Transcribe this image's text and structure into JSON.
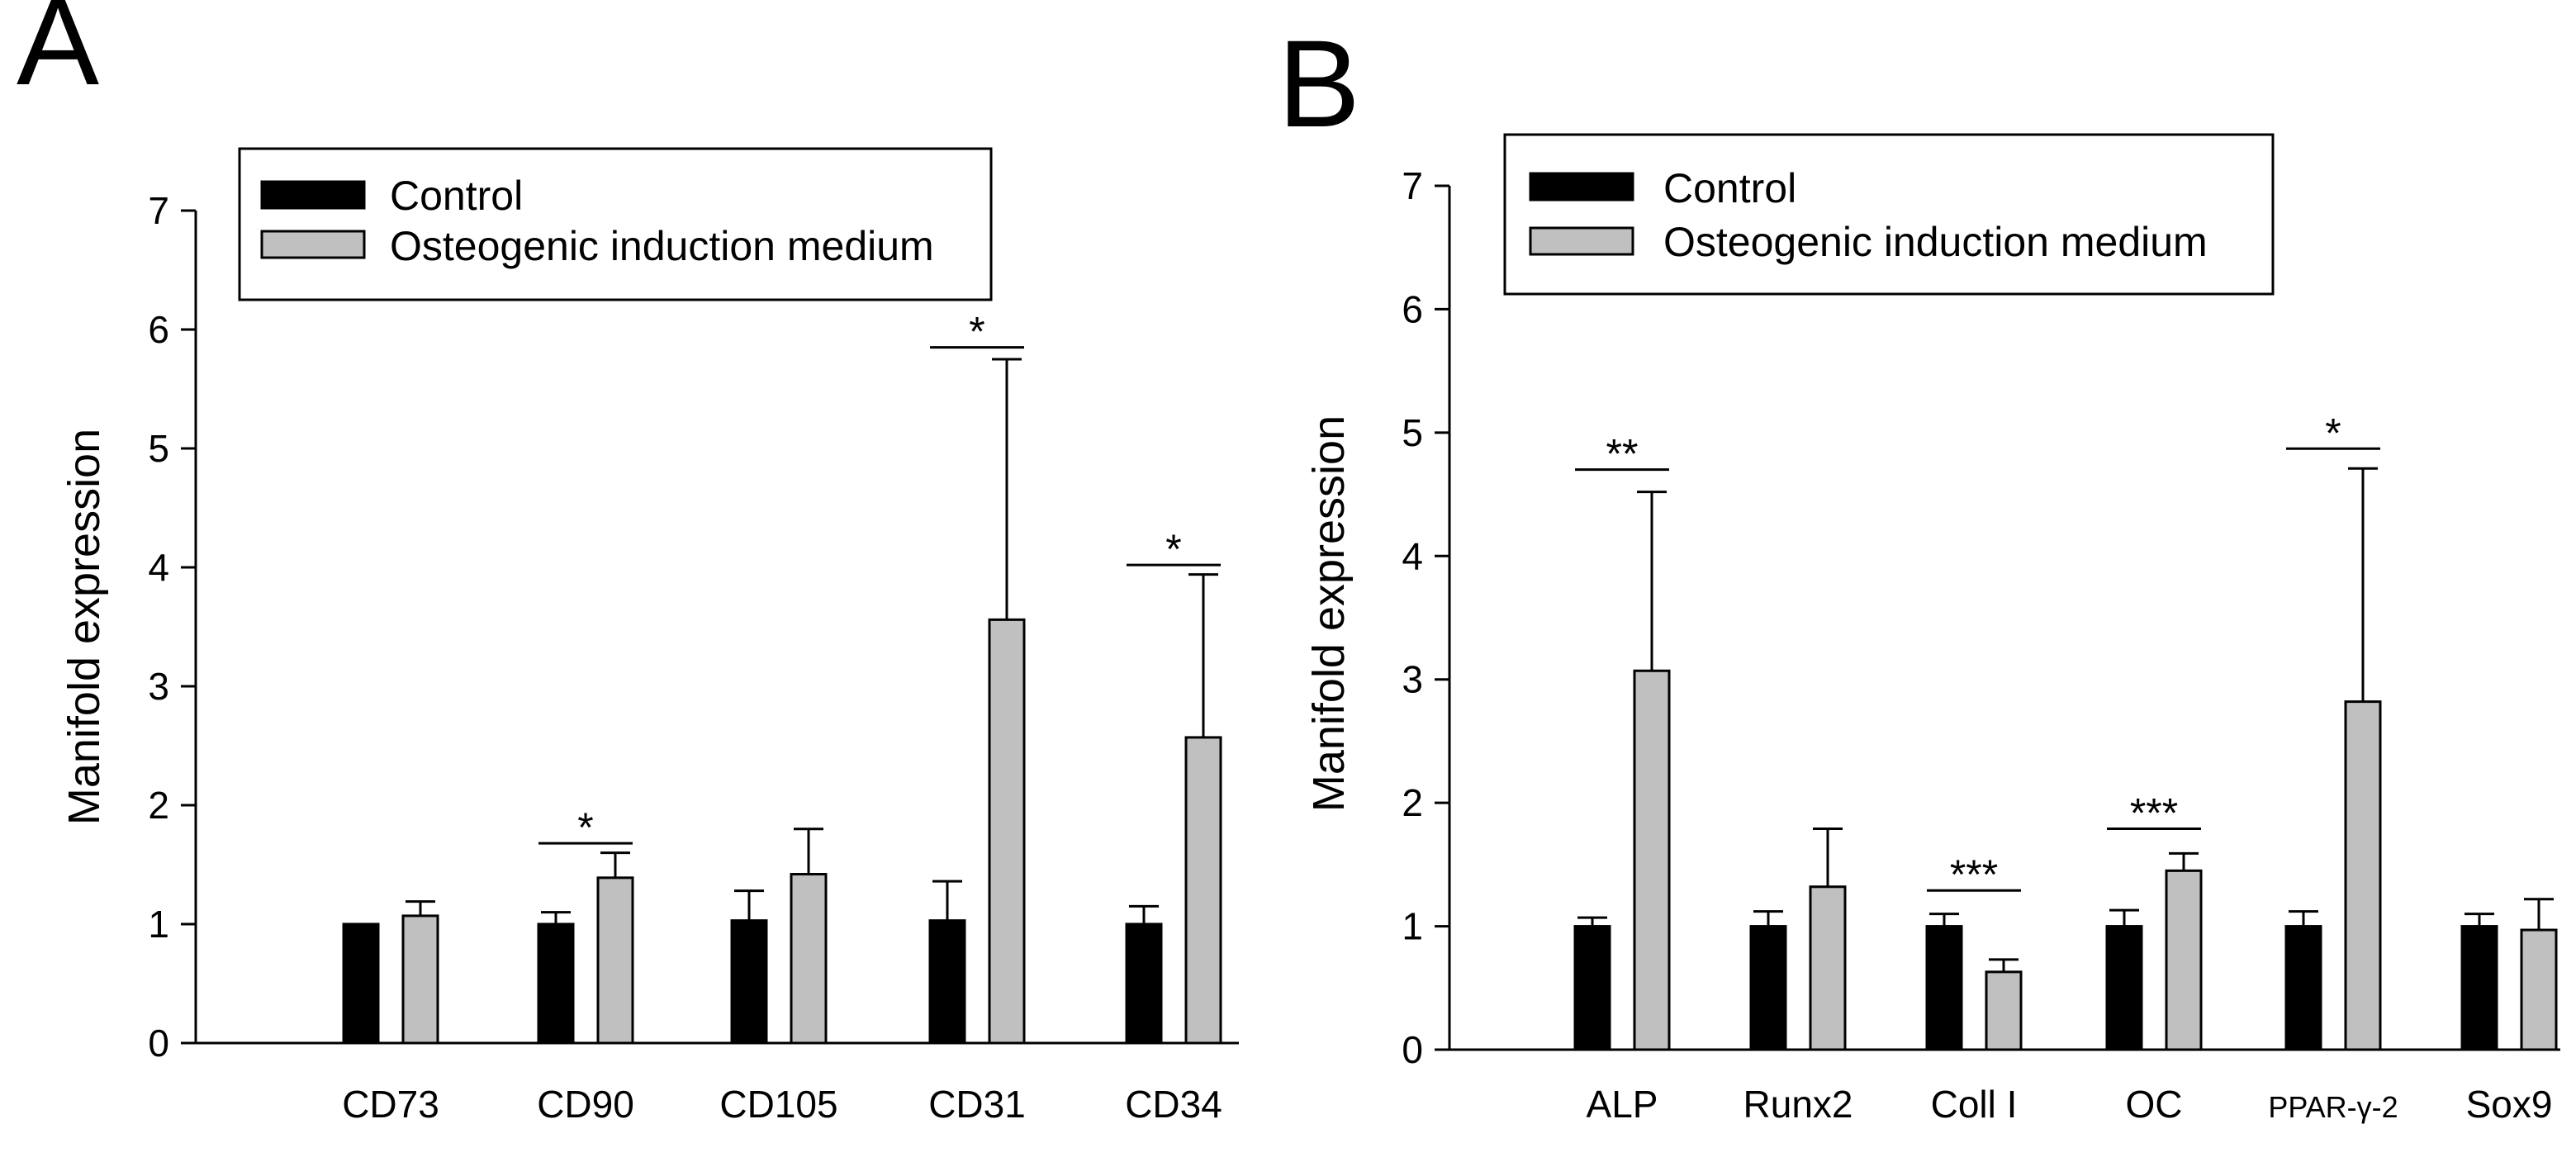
{
  "colors": {
    "control": "#000000",
    "treatment": "#c0c0c0",
    "axis": "#000000"
  },
  "chart_data": [
    {
      "type": "bar",
      "panel_label": "A",
      "ylabel": "Manifold expression",
      "xlabel": "",
      "ylim": [
        0,
        7
      ],
      "yticks": [
        "0",
        "1",
        "2",
        "3",
        "4",
        "5",
        "6",
        "7"
      ],
      "categories": [
        "CD73",
        "CD90",
        "CD105",
        "CD31",
        "CD34"
      ],
      "legend": [
        "Control",
        "Osteogenic induction medium"
      ],
      "series": [
        {
          "name": "Control",
          "values": [
            1.0,
            1.0,
            1.03,
            1.03,
            1.0
          ],
          "errors": [
            0.0,
            0.1,
            0.25,
            0.33,
            0.15
          ]
        },
        {
          "name": "Osteogenic induction medium",
          "values": [
            1.07,
            1.39,
            1.42,
            3.56,
            2.57
          ],
          "errors": [
            0.12,
            0.21,
            0.38,
            2.19,
            1.37
          ]
        }
      ],
      "significance": [
        {
          "category": "CD90",
          "label": "*",
          "y": 1.68
        },
        {
          "category": "CD31",
          "label": "*",
          "y": 5.85
        },
        {
          "category": "CD34",
          "label": "*",
          "y": 4.02
        }
      ]
    },
    {
      "type": "bar",
      "panel_label": "B",
      "ylabel": "Manifold expression",
      "xlabel": "",
      "ylim": [
        0,
        7
      ],
      "yticks": [
        "0",
        "1",
        "2",
        "3",
        "4",
        "5",
        "6",
        "7"
      ],
      "categories": [
        "ALP",
        "Runx2",
        "Coll I",
        "OC",
        "PPAR-γ-2",
        "Sox9"
      ],
      "legend": [
        "Control",
        "Osteogenic induction medium"
      ],
      "series": [
        {
          "name": "Control",
          "values": [
            1.0,
            1.0,
            1.0,
            1.0,
            1.0,
            1.0
          ],
          "errors": [
            0.07,
            0.12,
            0.1,
            0.13,
            0.12,
            0.1
          ]
        },
        {
          "name": "Osteogenic induction medium",
          "values": [
            3.07,
            1.32,
            0.63,
            1.45,
            2.82,
            0.97
          ],
          "errors": [
            1.45,
            0.47,
            0.1,
            0.14,
            1.89,
            0.25
          ]
        }
      ],
      "significance": [
        {
          "category": "ALP",
          "label": "**",
          "y": 4.7
        },
        {
          "category": "Coll I",
          "label": "***",
          "y": 1.29
        },
        {
          "category": "OC",
          "label": "***",
          "y": 1.79
        },
        {
          "category": "PPAR-γ-2",
          "label": "*",
          "y": 4.87
        }
      ]
    }
  ]
}
